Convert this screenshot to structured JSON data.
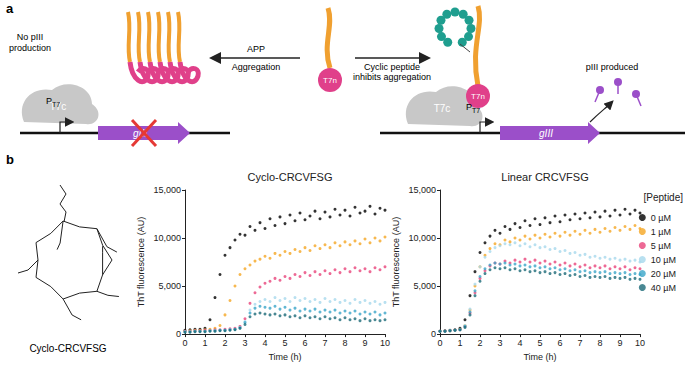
{
  "diagram": {
    "panel_label": "a",
    "left": {
      "status": [
        "No pIII",
        "production"
      ],
      "polymerase": "T7c",
      "promoter": {
        "text": "P",
        "subscript": "T7"
      },
      "gene": "gIII"
    },
    "arrow_left": {
      "above": "APP",
      "below": "Aggregation"
    },
    "center": {
      "fusion": "T7n"
    },
    "arrow_right": {
      "below": [
        "Cyclic peptide",
        "inhibits aggregation"
      ]
    },
    "right": {
      "fusion": "T7n",
      "polymerase": "T7c",
      "promoter": {
        "text": "P",
        "subscript": "T7"
      },
      "gene": "gIII",
      "output": "pIII produced"
    }
  },
  "panel_b": {
    "label": "b",
    "structure_caption": "Cyclo-CRCVFSG"
  },
  "chart_data": [
    {
      "type": "scatter",
      "title": "Cyclo-CRCVFSG",
      "x_label": "Time (h)",
      "y_label": "ThT fluorescence (AU)",
      "xlim": [
        0,
        10
      ],
      "xticks": [
        0,
        1,
        2,
        3,
        4,
        5,
        6,
        7,
        8,
        9,
        10
      ],
      "ylim": [
        0,
        15000
      ],
      "yticks": [
        0,
        {
          "value": 5000,
          "label": "5,000"
        },
        {
          "value": 10000,
          "label": "10,000"
        },
        {
          "value": 15000,
          "label": "15,000"
        }
      ],
      "grid": false,
      "marker": "circle",
      "x": [
        0,
        0.25,
        0.5,
        0.75,
        1,
        1.25,
        1.5,
        1.75,
        2,
        2.25,
        2.5,
        2.75,
        3,
        3.25,
        3.5,
        3.75,
        4,
        4.25,
        4.5,
        4.75,
        5,
        5.25,
        5.5,
        5.75,
        6,
        6.25,
        6.5,
        6.75,
        7,
        7.25,
        7.5,
        7.75,
        8,
        8.25,
        8.5,
        8.75,
        9,
        9.25,
        9.5,
        9.75,
        10
      ],
      "series": [
        {
          "name": "0 µM",
          "color": "#000000",
          "values": [
            400,
            450,
            500,
            500,
            600,
            1500,
            3800,
            6200,
            8200,
            9000,
            9800,
            10400,
            10300,
            11200,
            10800,
            11600,
            11000,
            12000,
            11300,
            12200,
            11500,
            12400,
            11800,
            12600,
            11900,
            12300,
            12800,
            12000,
            12700,
            12200,
            13000,
            12400,
            12900,
            12300,
            13200,
            12600,
            12800,
            13300,
            12500,
            13100,
            12900
          ]
        },
        {
          "name": "1 µM",
          "color": "#f5a623",
          "values": [
            300,
            350,
            400,
            400,
            450,
            500,
            600,
            900,
            2000,
            3500,
            5000,
            6200,
            6800,
            7200,
            7600,
            7800,
            8100,
            7900,
            8400,
            8200,
            8600,
            8400,
            8800,
            8600,
            9000,
            8700,
            9200,
            8900,
            9300,
            9000,
            9500,
            9200,
            9600,
            9300,
            9700,
            9400,
            9900,
            9500,
            10000,
            9700,
            10100
          ]
        },
        {
          "name": "5 µM",
          "color": "#e8447a",
          "values": [
            300,
            300,
            350,
            350,
            400,
            400,
            450,
            450,
            500,
            550,
            600,
            800,
            1600,
            3200,
            4300,
            4900,
            5300,
            5500,
            5800,
            5600,
            6000,
            5800,
            6200,
            6000,
            6400,
            6100,
            6500,
            6200,
            6600,
            6300,
            6700,
            6400,
            6800,
            6500,
            6900,
            6600,
            6800,
            6500,
            6900,
            6700,
            7000
          ]
        },
        {
          "name": "10 µM",
          "color": "#a6d8ec",
          "values": [
            250,
            250,
            300,
            300,
            300,
            350,
            350,
            400,
            400,
            450,
            500,
            700,
            1300,
            2500,
            3100,
            3400,
            3600,
            3400,
            3800,
            3500,
            3700,
            3400,
            3800,
            3500,
            3700,
            3400,
            3600,
            3300,
            3700,
            3400,
            3600,
            3300,
            3500,
            3200,
            3600,
            3300,
            3500,
            3200,
            3400,
            3100,
            3300
          ]
        },
        {
          "name": "20 µM",
          "color": "#3aa5c8",
          "values": [
            250,
            250,
            300,
            300,
            300,
            350,
            350,
            400,
            400,
            450,
            500,
            650,
            1200,
            2200,
            2700,
            2900,
            2800,
            2700,
            2900,
            2600,
            2800,
            2500,
            2700,
            2400,
            2600,
            2400,
            2600,
            2300,
            2500,
            2300,
            2500,
            2200,
            2400,
            2200,
            2400,
            2100,
            2300,
            2100,
            2300,
            2000,
            2200
          ]
        },
        {
          "name": "40 µM",
          "color": "#1b6a78",
          "values": [
            200,
            200,
            250,
            250,
            250,
            300,
            300,
            350,
            350,
            400,
            450,
            600,
            1000,
            1800,
            2100,
            2200,
            2100,
            2000,
            2100,
            1900,
            2000,
            1800,
            1900,
            1700,
            1900,
            1700,
            1800,
            1600,
            1800,
            1600,
            1700,
            1500,
            1700,
            1500,
            1600,
            1400,
            1600,
            1400,
            1500,
            1400,
            1500
          ]
        }
      ]
    },
    {
      "type": "scatter",
      "title": "Linear CRCVFSG",
      "x_label": "Time (h)",
      "y_label": "ThT fluorescence (AU)",
      "xlim": [
        0,
        10
      ],
      "xticks": [
        0,
        1,
        2,
        3,
        4,
        5,
        6,
        7,
        8,
        9,
        10
      ],
      "ylim": [
        0,
        15000
      ],
      "yticks": [
        0,
        {
          "value": 5000,
          "label": "5,000"
        },
        {
          "value": 10000,
          "label": "10,000"
        },
        {
          "value": 15000,
          "label": "15,000"
        }
      ],
      "grid": false,
      "marker": "circle",
      "legend": "right",
      "legend_title": "[Peptide]",
      "x": [
        0,
        0.25,
        0.5,
        0.75,
        1,
        1.25,
        1.5,
        1.75,
        2,
        2.25,
        2.5,
        2.75,
        3,
        3.25,
        3.5,
        3.75,
        4,
        4.25,
        4.5,
        4.75,
        5,
        5.25,
        5.5,
        5.75,
        6,
        6.25,
        6.5,
        6.75,
        7,
        7.25,
        7.5,
        7.75,
        8,
        8.25,
        8.5,
        8.75,
        9,
        9.25,
        9.5,
        9.75,
        10
      ],
      "series": [
        {
          "name": "0 µM",
          "color": "#000000",
          "values": [
            300,
            350,
            400,
            450,
            600,
            1500,
            4000,
            6500,
            8500,
            9500,
            10200,
            10800,
            10500,
            11200,
            10900,
            11500,
            11100,
            11800,
            11300,
            12000,
            11400,
            12100,
            11600,
            12300,
            11700,
            12400,
            11900,
            12500,
            12000,
            12600,
            12100,
            12700,
            12200,
            12800,
            12300,
            12900,
            12400,
            13000,
            12500,
            12900,
            12600
          ]
        },
        {
          "name": "1 µM",
          "color": "#f5a623",
          "values": [
            300,
            300,
            350,
            400,
            500,
            900,
            2500,
            5000,
            7000,
            8200,
            8900,
            9400,
            9300,
            9800,
            9600,
            10000,
            9800,
            10200,
            9900,
            10300,
            10000,
            10400,
            10100,
            10500,
            10200,
            10600,
            10300,
            10700,
            10400,
            10800,
            10500,
            10900,
            10600,
            11000,
            10700,
            11100,
            10800,
            11200,
            10900,
            11300,
            11000
          ]
        },
        {
          "name": "5 µM",
          "color": "#e8447a",
          "values": [
            300,
            300,
            350,
            400,
            450,
            800,
            2200,
            4300,
            5800,
            6600,
            7100,
            7400,
            7300,
            7600,
            7400,
            7700,
            7500,
            7800,
            7500,
            7700,
            7400,
            7600,
            7300,
            7500,
            7200,
            7400,
            7100,
            7300,
            7000,
            7200,
            6900,
            7100,
            6900,
            7100,
            6800,
            7000,
            6800,
            7000,
            6700,
            6900,
            6800
          ]
        },
        {
          "name": "10 µM",
          "color": "#a6d8ec",
          "values": [
            300,
            300,
            350,
            400,
            450,
            900,
            2600,
            5200,
            7000,
            8000,
            8600,
            9000,
            9200,
            9400,
            9300,
            9500,
            9200,
            9400,
            9100,
            9300,
            9000,
            9100,
            8800,
            8900,
            8600,
            8700,
            8400,
            8500,
            8200,
            8300,
            8000,
            8100,
            7900,
            8000,
            7800,
            7900,
            7700,
            7800,
            7600,
            7700,
            7500
          ]
        },
        {
          "name": "20 µM",
          "color": "#3aa5c8",
          "values": [
            300,
            300,
            350,
            400,
            450,
            800,
            2300,
            4500,
            6000,
            6800,
            7200,
            7400,
            7300,
            7400,
            7200,
            7300,
            7100,
            7200,
            7000,
            7100,
            6900,
            7000,
            6800,
            6900,
            6700,
            6800,
            6600,
            6700,
            6500,
            6600,
            6400,
            6500,
            6400,
            6500,
            6300,
            6400,
            6300,
            6400,
            6200,
            6300,
            6200
          ]
        },
        {
          "name": "40 µM",
          "color": "#1b6a78",
          "values": [
            300,
            300,
            350,
            400,
            450,
            700,
            2000,
            4000,
            5500,
            6300,
            6700,
            6900,
            6800,
            6900,
            6700,
            6800,
            6600,
            6700,
            6500,
            6600,
            6400,
            6500,
            6300,
            6400,
            6200,
            6300,
            6100,
            6200,
            6000,
            6100,
            5900,
            6000,
            5900,
            6000,
            5800,
            5900,
            5800,
            5900,
            5700,
            5800,
            5700
          ]
        }
      ]
    }
  ]
}
